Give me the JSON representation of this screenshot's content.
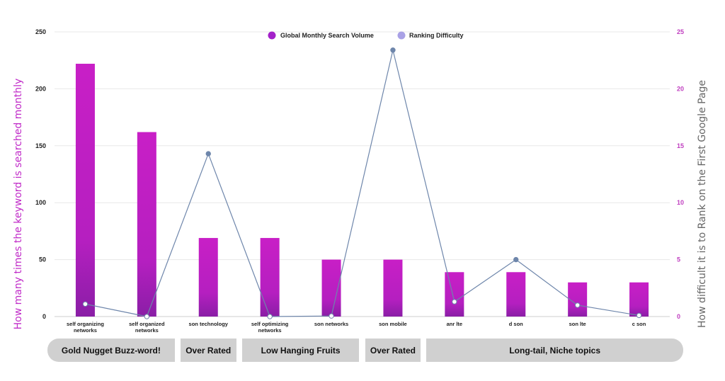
{
  "chart_data": {
    "type": "bar",
    "categories": [
      [
        "self organizing",
        "networks"
      ],
      [
        "self organized",
        "networks"
      ],
      [
        "son technology"
      ],
      [
        "self optimizing",
        "networks"
      ],
      [
        "son networks"
      ],
      [
        "son mobile"
      ],
      [
        "anr lte"
      ],
      [
        "d son"
      ],
      [
        "son lte"
      ],
      [
        "c son"
      ]
    ],
    "series": [
      {
        "name": "Global Monthly Search Volume",
        "type": "bar",
        "axis": "left",
        "values": [
          222,
          162,
          69,
          69,
          50,
          50,
          39,
          39,
          30,
          30
        ]
      },
      {
        "name": "Ranking Difficulty",
        "type": "line",
        "axis": "right",
        "values": [
          1.1,
          0,
          14.3,
          0,
          0.05,
          23.4,
          1.3,
          5,
          1,
          0.1
        ]
      }
    ],
    "ylabel": "How many times the keyword is searched monthly",
    "y2label": "How difficult it is to Rank on the First Google Page",
    "ylim": [
      0,
      250
    ],
    "y2lim": [
      0,
      25
    ],
    "yticks": [
      0,
      50,
      100,
      150,
      200,
      250
    ],
    "y2ticks": [
      0,
      5,
      10,
      15,
      20,
      25
    ],
    "grid": true,
    "legend": "top-center",
    "colors": {
      "bar": "#c21fc4",
      "bar_dark": "#8f1fa6",
      "line": "#6e86ab",
      "legend_bar": "#a321c9",
      "legend_line": "#a9a1e6"
    },
    "groups": [
      {
        "label": "Gold Nugget Buzz-word!",
        "from": 0,
        "to": 1
      },
      {
        "label": "Over Rated",
        "from": 2,
        "to": 2
      },
      {
        "label": "Low Hanging Fruits",
        "from": 3,
        "to": 4
      },
      {
        "label": "Over Rated",
        "from": 5,
        "to": 5
      },
      {
        "label": "Long-tail, Niche topics",
        "from": 6,
        "to": 9
      }
    ]
  }
}
